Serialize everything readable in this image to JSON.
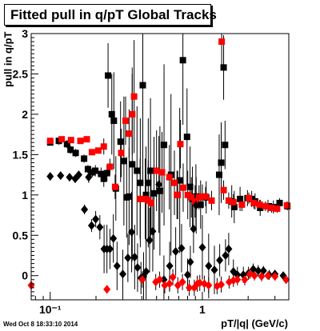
{
  "title": "Fitted pull in q/pT  Global Tracks",
  "timestamp": "Wed Oct  8 18:33:10 2014",
  "chart_data": {
    "type": "scatter",
    "xlabel": "pT/|q| (GeV/c)",
    "ylabel": "pull in q/pT",
    "xscale": "log",
    "xlim": [
      0.075,
      3.7
    ],
    "ylim": [
      -0.3,
      3.0
    ],
    "xticks": [
      {
        "value": 0.1,
        "label": "10⁻¹"
      },
      {
        "value": 1,
        "label": "1"
      }
    ],
    "yticks": [
      {
        "value": 0,
        "label": "0"
      },
      {
        "value": 0.5,
        "label": "0.5"
      },
      {
        "value": 1,
        "label": "1"
      },
      {
        "value": 1.5,
        "label": "1.5"
      },
      {
        "value": 2,
        "label": "2"
      },
      {
        "value": 2.5,
        "label": "2.5"
      },
      {
        "value": 3,
        "label": "3"
      }
    ],
    "grid": false,
    "legend": "none",
    "series": [
      {
        "marker": "square",
        "color": "#000000",
        "points": [
          [
            0.1,
            1.65,
            0
          ],
          [
            0.114,
            1.67,
            0.05
          ],
          [
            0.129,
            1.63,
            0.05
          ],
          [
            0.136,
            1.56,
            0.05
          ],
          [
            0.147,
            1.52,
            0.05
          ],
          [
            0.167,
            1.45,
            0.05
          ],
          [
            0.177,
            1.32,
            0.05
          ],
          [
            0.189,
            1.28,
            0.06
          ],
          [
            0.198,
            1.3,
            0.07
          ],
          [
            0.216,
            1.26,
            0.08
          ],
          [
            0.225,
            1.2,
            0.1
          ],
          [
            0.236,
            1.27,
            0.1
          ],
          [
            0.24,
            2.48,
            0.4
          ],
          [
            0.254,
            2.0,
            0.5
          ],
          [
            0.262,
            1.92,
            0.6
          ],
          [
            0.27,
            1.08,
            0.4
          ],
          [
            0.29,
            1.66,
            0.5
          ],
          [
            0.305,
            1.42,
            0.8
          ],
          [
            0.318,
            0.97,
            0.5
          ],
          [
            0.33,
            0.98,
            0.6
          ],
          [
            0.346,
            1.38,
            1.2
          ],
          [
            0.372,
            1.3,
            0.8
          ],
          [
            0.391,
            1.15,
            0.8
          ],
          [
            0.406,
            2.36,
            1.2
          ],
          [
            0.426,
            1.0,
            0.6
          ],
          [
            0.441,
            1.15,
            0.8
          ],
          [
            0.456,
            1.3,
            0.9
          ],
          [
            0.481,
            1.02,
            0.7
          ],
          [
            0.526,
            1.05,
            0.8
          ],
          [
            0.56,
            1.62,
            1.0
          ],
          [
            0.622,
            1.25,
            1.0
          ],
          [
            0.71,
            1.18,
            0.9
          ],
          [
            0.745,
            2.67,
            0.8
          ],
          [
            0.793,
            1.72,
            0.6
          ],
          [
            0.83,
            1.1,
            0.5
          ],
          [
            0.86,
            0.95,
            0.4
          ],
          [
            0.907,
            0.98,
            0.4
          ],
          [
            0.974,
            0.88,
            0.3
          ],
          [
            1.06,
            0.97,
            0.2
          ],
          [
            1.29,
            1.25,
            0.5
          ],
          [
            1.33,
            1.4,
            0.5
          ],
          [
            1.38,
            2.58,
            0.4
          ],
          [
            1.41,
            1.62,
            0.3
          ],
          [
            1.56,
            0.92,
            0.2
          ],
          [
            1.62,
            0.85,
            0.2
          ],
          [
            1.77,
            0.95,
            0.15
          ],
          [
            1.98,
            0.96,
            0.1
          ],
          [
            2.11,
            0.95,
            0.1
          ],
          [
            2.22,
            0.92,
            0.1
          ],
          [
            2.4,
            0.84,
            0.1
          ],
          [
            2.7,
            0.86,
            0.08
          ],
          [
            2.93,
            0.85,
            0.08
          ],
          [
            3.22,
            0.9,
            0.06
          ],
          [
            3.62,
            0.86,
            0.05
          ]
        ]
      },
      {
        "marker": "square",
        "color": "#ff0000",
        "points": [
          [
            0.1,
            1.67,
            0.02
          ],
          [
            0.119,
            1.69,
            0.02
          ],
          [
            0.137,
            1.68,
            0.02
          ],
          [
            0.158,
            1.67,
            0.02
          ],
          [
            0.174,
            1.69,
            0.02
          ],
          [
            0.188,
            1.53,
            0.03
          ],
          [
            0.207,
            1.55,
            0.03
          ],
          [
            0.225,
            1.6,
            0.1
          ],
          [
            0.247,
            1.35,
            0.1
          ],
          [
            0.267,
            1.1,
            0.15
          ],
          [
            0.293,
            1.52,
            0.3
          ],
          [
            0.313,
            1.92,
            0.3
          ],
          [
            0.33,
            1.76,
            0.3
          ],
          [
            0.346,
            2.0,
            0.5
          ],
          [
            0.356,
            2.22,
            0.7
          ],
          [
            0.39,
            0.95,
            0.5
          ],
          [
            0.421,
            0.95,
            0.5
          ],
          [
            0.441,
            0.93,
            0.5
          ],
          [
            0.46,
            0.9,
            0.4
          ],
          [
            0.5,
            1.3,
            0.5
          ],
          [
            0.543,
            1.28,
            0.5
          ],
          [
            0.607,
            1.22,
            0.4
          ],
          [
            0.655,
            1.15,
            0.4
          ],
          [
            0.681,
            1.0,
            0.3
          ],
          [
            0.689,
            1.0,
            0.3
          ],
          [
            0.717,
            1.63,
            0.3
          ],
          [
            0.748,
            1.09,
            0.3
          ],
          [
            0.802,
            1.0,
            0.3
          ],
          [
            0.847,
            0.97,
            0.25
          ],
          [
            0.896,
            0.92,
            0.2
          ],
          [
            0.951,
            0.97,
            0.15
          ],
          [
            1.0,
            0.98,
            0.15
          ],
          [
            1.05,
            0.98,
            0.12
          ],
          [
            1.15,
            0.93,
            0.12
          ],
          [
            1.34,
            2.9,
            0.3
          ],
          [
            1.38,
            1.06,
            0.12
          ],
          [
            1.49,
            0.93,
            0.1
          ],
          [
            1.6,
            0.91,
            0.1
          ],
          [
            1.82,
            0.88,
            0.08
          ],
          [
            2.02,
            0.96,
            0.07
          ],
          [
            2.18,
            0.9,
            0.07
          ],
          [
            2.38,
            0.88,
            0.06
          ],
          [
            2.6,
            0.86,
            0.06
          ],
          [
            2.85,
            0.84,
            0.06
          ],
          [
            3.1,
            0.83,
            0.05
          ],
          [
            3.6,
            0.87,
            0.05
          ]
        ]
      },
      {
        "marker": "diamond",
        "color": "#000000",
        "points": [
          [
            0.1,
            1.23,
            0.02
          ],
          [
            0.117,
            1.24,
            0.02
          ],
          [
            0.134,
            1.22,
            0.03
          ],
          [
            0.146,
            1.2,
            0.04
          ],
          [
            0.154,
            1.25,
            0.04
          ],
          [
            0.168,
            0.82,
            0.06
          ],
          [
            0.179,
            1.22,
            0.07
          ],
          [
            0.187,
            0.62,
            0.08
          ],
          [
            0.199,
            0.7,
            0.1
          ],
          [
            0.212,
            0.6,
            0.15
          ],
          [
            0.226,
            0.33,
            0.3
          ],
          [
            0.236,
            0.33,
            0.3
          ],
          [
            0.247,
            0.33,
            0.25
          ],
          [
            0.26,
            0.46,
            0.3
          ],
          [
            0.275,
            0.12,
            0.3
          ],
          [
            0.3,
            0.02,
            0.3
          ],
          [
            0.324,
            0.22,
            0.3
          ],
          [
            0.343,
            0.54,
            0.5
          ],
          [
            0.359,
            0.23,
            0.4
          ],
          [
            0.375,
            0.1,
            0.3
          ],
          [
            0.395,
            -0.03,
            0.2
          ],
          [
            0.411,
            -0.01,
            0.3
          ],
          [
            0.427,
            0.05,
            0.4
          ],
          [
            0.45,
            0.44,
            0.4
          ],
          [
            0.472,
            0.55,
            0.5
          ],
          [
            0.518,
            1.13,
            0.6
          ],
          [
            0.559,
            -0.05,
            0.3
          ],
          [
            0.61,
            0.12,
            0.3
          ],
          [
            0.668,
            0.3,
            0.3
          ],
          [
            0.73,
            0.34,
            0.3
          ],
          [
            0.8,
            0.01,
            0.2
          ],
          [
            0.834,
            0.17,
            0.2
          ],
          [
            0.875,
            0.58,
            0.3
          ],
          [
            0.911,
            0.87,
            0.35
          ],
          [
            1.0,
            0.35,
            0.4
          ],
          [
            1.1,
            0.12,
            0.4
          ],
          [
            1.2,
            0.07,
            0.3
          ],
          [
            1.3,
            0.19,
            0.2
          ],
          [
            1.42,
            0.25,
            0.2
          ],
          [
            1.49,
            0.33,
            0.2
          ],
          [
            1.6,
            0.05,
            0.15
          ],
          [
            1.7,
            0.01,
            0.1
          ],
          [
            1.86,
            0.01,
            0.1
          ],
          [
            2.01,
            0.03,
            0.08
          ],
          [
            2.16,
            0.08,
            0.07
          ],
          [
            2.33,
            0.06,
            0.07
          ],
          [
            2.52,
            0.06,
            0.06
          ],
          [
            2.75,
            0.01,
            0.06
          ],
          [
            3.0,
            0.02,
            0.05
          ],
          [
            3.4,
            0.0,
            0.05
          ]
        ]
      },
      {
        "marker": "diamond",
        "color": "#ff0000",
        "points": [
          [
            0.075,
            -0.12,
            0.02
          ],
          [
            0.236,
            -0.17,
            0.05
          ],
          [
            0.403,
            -0.05,
            0.1
          ],
          [
            0.494,
            -0.08,
            0.1
          ],
          [
            0.524,
            -0.05,
            0.1
          ],
          [
            0.566,
            -0.12,
            0.1
          ],
          [
            0.608,
            -0.1,
            0.1
          ],
          [
            0.64,
            -0.02,
            0.1
          ],
          [
            0.69,
            -0.12,
            0.1
          ],
          [
            0.74,
            -0.08,
            0.1
          ],
          [
            0.82,
            -0.15,
            0.1
          ],
          [
            0.885,
            -0.15,
            0.1
          ],
          [
            0.926,
            -0.1,
            0.1
          ],
          [
            0.962,
            -0.09,
            0.1
          ],
          [
            1.03,
            -0.1,
            0.1
          ],
          [
            1.1,
            -0.12,
            0.1
          ],
          [
            1.25,
            -0.13,
            0.1
          ],
          [
            1.33,
            -0.11,
            0.1
          ],
          [
            1.5,
            -0.08,
            0.08
          ],
          [
            1.6,
            -0.06,
            0.08
          ],
          [
            1.7,
            -0.05,
            0.07
          ],
          [
            1.9,
            -0.05,
            0.07
          ],
          [
            2.05,
            0.02,
            0.06
          ],
          [
            2.2,
            0.0,
            0.06
          ],
          [
            2.45,
            -0.01,
            0.06
          ],
          [
            2.7,
            0.0,
            0.05
          ],
          [
            3.0,
            -0.01,
            0.05
          ],
          [
            3.55,
            -0.05,
            0.05
          ]
        ]
      }
    ]
  }
}
